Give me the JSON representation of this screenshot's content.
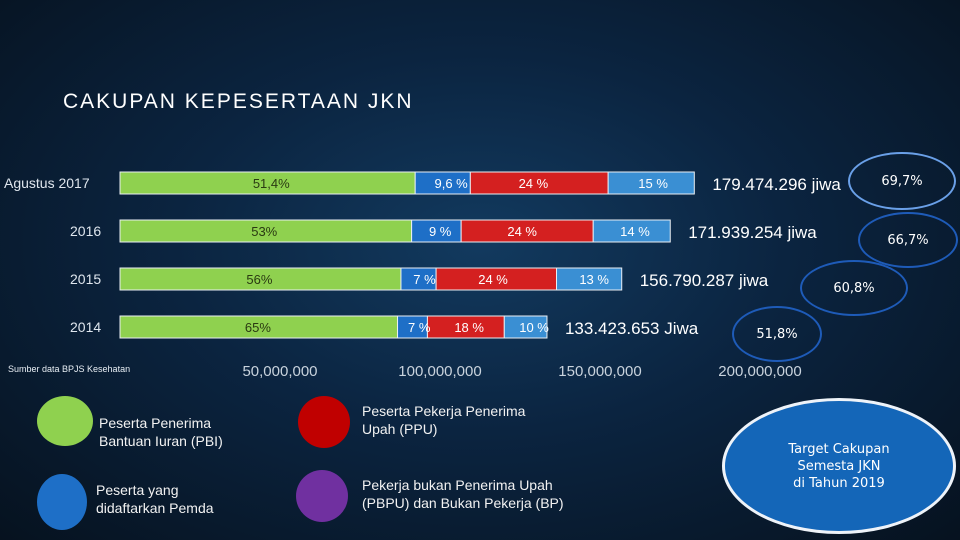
{
  "page": {
    "title": "CAKUPAN KEPESERTAAN JKN"
  },
  "chart_data": {
    "type": "bar",
    "orientation": "horizontal",
    "stacked": true,
    "categories": [
      "Agustus 2017",
      "2016",
      "2015",
      "2014"
    ],
    "x_ticks": [
      "50,000,000",
      "100,000,000",
      "150,000,000",
      "200,000,000"
    ],
    "x_tick_values": [
      50000000,
      100000000,
      150000000,
      200000000
    ],
    "xlim": [
      0,
      230000000
    ],
    "totals": [
      179474296,
      171939254,
      156790287,
      133423653
    ],
    "total_labels": [
      "179.474.296 jiwa",
      "171.939.254 jiwa",
      "156.790.287 jiwa",
      "133.423.653 Jiwa"
    ],
    "coverage_labels": [
      "69,7%",
      "66,7%",
      "60,8%",
      "51,8%"
    ],
    "series": [
      {
        "color": "#8fd14f",
        "values": [
          92250000,
          91130000,
          87800000,
          86730000
        ],
        "labels": [
          "51,4%",
          "53%",
          "56%",
          "65%"
        ]
      },
      {
        "color": "#1e6fc7",
        "values": [
          17230000,
          15480000,
          10980000,
          9340000
        ],
        "labels": [
          "9,6 %",
          "9 %",
          "7 %",
          "7 %"
        ]
      },
      {
        "color": "#d42020",
        "values": [
          43070000,
          41270000,
          37630000,
          24020000
        ],
        "labels": [
          "24 %",
          "24 %",
          "24 %",
          "18 %"
        ]
      },
      {
        "color": "#3a8fd3",
        "values": [
          26920000,
          24070000,
          20380000,
          13340000
        ],
        "labels": [
          "15 %",
          "14 %",
          "13 %",
          "10 %"
        ]
      }
    ],
    "colors": {
      "pbi": "#8fd14f",
      "pemda": "#1e6fc7",
      "ppu": "#c00000",
      "pbpu": "#7030a0"
    }
  },
  "source": "Sumber data BPJS Kesehatan",
  "legend": [
    {
      "color": "#8fd14f",
      "label": "Peserta Penerima\nBantuan Iuran (PBI)"
    },
    {
      "color": "#1e6fc7",
      "label": "Peserta yang\ndidaftarkan Pemda"
    },
    {
      "color": "#c00000",
      "label": "Peserta Pekerja Penerima\nUpah (PPU)"
    },
    {
      "color": "#7030a0",
      "label": "Pekerja bukan Penerima Upah\n(PBPU) dan Bukan Pekerja (BP)"
    }
  ],
  "target": {
    "text": "Target Cakupan\nSemesta JKN\ndi Tahun 2019"
  }
}
